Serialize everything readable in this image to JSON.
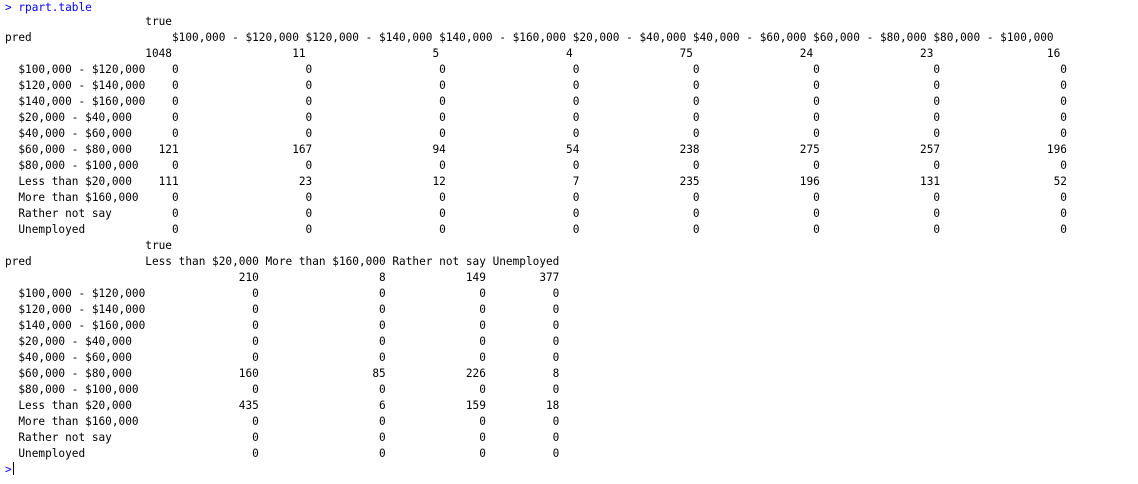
{
  "console": {
    "command_line": "> rpart.table",
    "prompt": ">",
    "output_lines": [
      "                     true",
      "pred                     $100,000 - $120,000 $120,000 - $140,000 $140,000 - $160,000 $20,000 - $40,000 $40,000 - $60,000 $60,000 - $80,000 $80,000 - $100,000",
      "                     1048                  11                   5                   4                75                24                23                 16",
      "  $100,000 - $120,000    0                   0                   0                   0                 0                 0                 0                  0",
      "  $120,000 - $140,000    0                   0                   0                   0                 0                 0                 0                  0",
      "  $140,000 - $160,000    0                   0                   0                   0                 0                 0                 0                  0",
      "  $20,000 - $40,000      0                   0                   0                   0                 0                 0                 0                  0",
      "  $40,000 - $60,000      0                   0                   0                   0                 0                 0                 0                  0",
      "  $60,000 - $80,000    121                 167                  94                  54               238               275               257                196",
      "  $80,000 - $100,000     0                   0                   0                   0                 0                 0                 0                  0",
      "  Less than $20,000    111                  23                  12                   7               235               196               131                 52",
      "  More than $160,000     0                   0                   0                   0                 0                 0                 0                  0",
      "  Rather not say         0                   0                   0                   0                 0                 0                 0                  0",
      "  Unemployed             0                   0                   0                   0                 0                 0                 0                  0",
      "                     true",
      "pred                 Less than $20,000 More than $160,000 Rather not say Unemployed",
      "                                   210                  8            149        377",
      "  $100,000 - $120,000                0                  0              0          0",
      "  $120,000 - $140,000                0                  0              0          0",
      "  $140,000 - $160,000                0                  0              0          0",
      "  $20,000 - $40,000                  0                  0              0          0",
      "  $40,000 - $60,000                  0                  0              0          0",
      "  $60,000 - $80,000                160                 85            226          8",
      "  $80,000 - $100,000                 0                  0              0          0",
      "  Less than $20,000                435                  6            159         18",
      "  More than $160,000                 0                  0              0          0",
      "  Rather not say                     0                  0              0          0",
      "  Unemployed                         0                  0              0          0"
    ]
  },
  "colors": {
    "command": "#0000ff",
    "output": "#000000",
    "background": "#ffffff"
  }
}
